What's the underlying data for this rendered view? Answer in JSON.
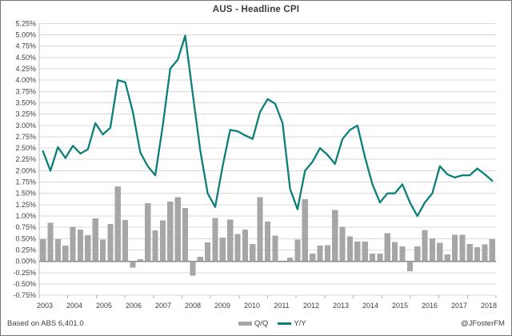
{
  "chart_data": {
    "type": "combo-bar-line",
    "title": "AUS - Headline CPI",
    "start": "2003-Q4",
    "end": "2018-Q4",
    "quarters": [
      "2003-Q4",
      "2004-Q1",
      "2004-Q2",
      "2004-Q3",
      "2004-Q4",
      "2005-Q1",
      "2005-Q2",
      "2005-Q3",
      "2005-Q4",
      "2006-Q1",
      "2006-Q2",
      "2006-Q3",
      "2006-Q4",
      "2007-Q1",
      "2007-Q2",
      "2007-Q3",
      "2007-Q4",
      "2008-Q1",
      "2008-Q2",
      "2008-Q3",
      "2008-Q4",
      "2009-Q1",
      "2009-Q2",
      "2009-Q3",
      "2009-Q4",
      "2010-Q1",
      "2010-Q2",
      "2010-Q3",
      "2010-Q4",
      "2011-Q1",
      "2011-Q2",
      "2011-Q3",
      "2011-Q4",
      "2012-Q1",
      "2012-Q2",
      "2012-Q3",
      "2012-Q4",
      "2013-Q1",
      "2013-Q2",
      "2013-Q3",
      "2013-Q4",
      "2014-Q1",
      "2014-Q2",
      "2014-Q3",
      "2014-Q4",
      "2015-Q1",
      "2015-Q2",
      "2015-Q3",
      "2015-Q4",
      "2016-Q1",
      "2016-Q2",
      "2016-Q3",
      "2016-Q4",
      "2017-Q1",
      "2017-Q2",
      "2017-Q3",
      "2017-Q4",
      "2018-Q1",
      "2018-Q2",
      "2018-Q3",
      "2018-Q4"
    ],
    "series": [
      {
        "name": "Q/Q",
        "type": "bar",
        "color": "#a6a6a6",
        "values": [
          0.49,
          0.85,
          0.49,
          0.35,
          0.76,
          0.7,
          0.58,
          0.95,
          0.48,
          0.82,
          1.65,
          0.91,
          -0.14,
          0.05,
          1.28,
          0.68,
          0.9,
          1.32,
          1.42,
          1.18,
          -0.31,
          0.1,
          0.42,
          0.96,
          0.52,
          0.92,
          0.6,
          0.7,
          0.38,
          1.42,
          0.88,
          0.57,
          0.0,
          0.08,
          0.48,
          1.37,
          0.17,
          0.35,
          0.36,
          1.13,
          0.76,
          0.55,
          0.44,
          0.44,
          0.17,
          0.17,
          0.62,
          0.43,
          0.33,
          -0.22,
          0.33,
          0.69,
          0.51,
          0.41,
          0.15,
          0.59,
          0.59,
          0.38,
          0.31,
          0.37,
          0.49
        ]
      },
      {
        "name": "Y/Y",
        "type": "line",
        "color": "#0c7f7b",
        "values": [
          2.43,
          2.0,
          2.52,
          2.28,
          2.55,
          2.38,
          2.47,
          3.05,
          2.8,
          2.95,
          4.0,
          3.95,
          3.3,
          2.4,
          2.1,
          1.9,
          3.0,
          4.25,
          4.45,
          4.98,
          3.7,
          2.45,
          1.5,
          1.2,
          2.1,
          2.9,
          2.87,
          2.78,
          2.7,
          3.3,
          3.58,
          3.48,
          3.05,
          1.6,
          1.15,
          2.0,
          2.2,
          2.5,
          2.35,
          2.15,
          2.7,
          2.9,
          3.0,
          2.3,
          1.7,
          1.3,
          1.5,
          1.5,
          1.7,
          1.3,
          1.0,
          1.3,
          1.5,
          2.1,
          1.92,
          1.85,
          1.9,
          1.9,
          2.05,
          1.92,
          1.78
        ]
      }
    ],
    "y_axis": {
      "min": -0.75,
      "max": 5.25,
      "step": 0.25,
      "tick_labels": [
        "5.25%",
        "5.00%",
        "4.75%",
        "4.50%",
        "4.25%",
        "4.00%",
        "3.75%",
        "3.50%",
        "3.25%",
        "3.00%",
        "2.75%",
        "2.50%",
        "2.25%",
        "2.00%",
        "1.75%",
        "1.50%",
        "1.25%",
        "1.00%",
        "0.75%",
        "0.50%",
        "0.25%",
        "0.00%",
        "-0.25%",
        "-0.50%",
        "-0.75%"
      ]
    },
    "x_axis": {
      "year_labels": [
        "2003",
        "2004",
        "2005",
        "2006",
        "2007",
        "2008",
        "2009",
        "2010",
        "2011",
        "2012",
        "2013",
        "2014",
        "2015",
        "2016",
        "2017",
        "2018"
      ]
    },
    "grid": "horizontal",
    "legend_position": "bottom-center"
  },
  "footer": {
    "source": "Based on ABS 6,401.0",
    "credit": "@JFosterFM"
  },
  "style_colors": {
    "gridline": "#d9d9d9",
    "axis_line": "#bdbdbd",
    "zero_line": "#808080",
    "tick": "#b0b0b0",
    "text": "#404040",
    "border": "#767676",
    "background": "#ffffff"
  }
}
